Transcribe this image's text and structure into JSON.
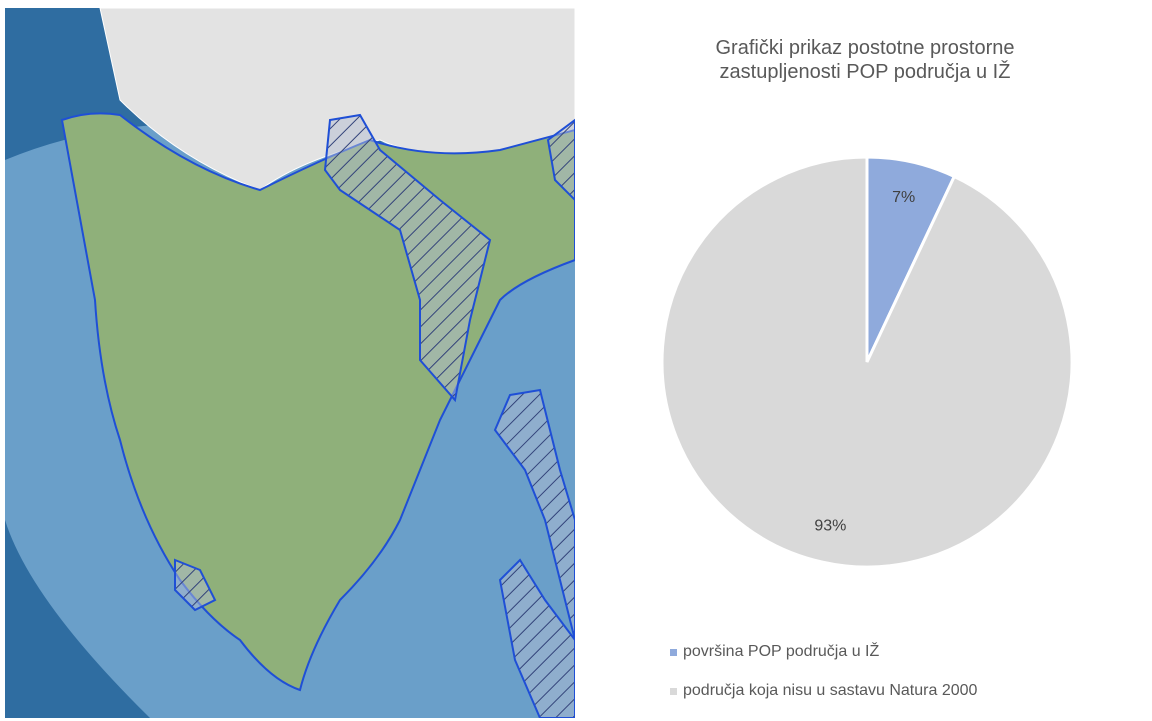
{
  "chart_data": {
    "type": "pie",
    "title": "Grafički prikaz postotne prostorne zastupljenosti POP područja u IŽ",
    "categories": [
      "površina POP područja u IŽ",
      "područja koja nisu u sastavu Natura 2000"
    ],
    "values": [
      7,
      93
    ],
    "value_labels": [
      "7%",
      "93%"
    ],
    "colors": [
      "#8faadc",
      "#d9d9d9"
    ],
    "legend": "bottom"
  }
}
